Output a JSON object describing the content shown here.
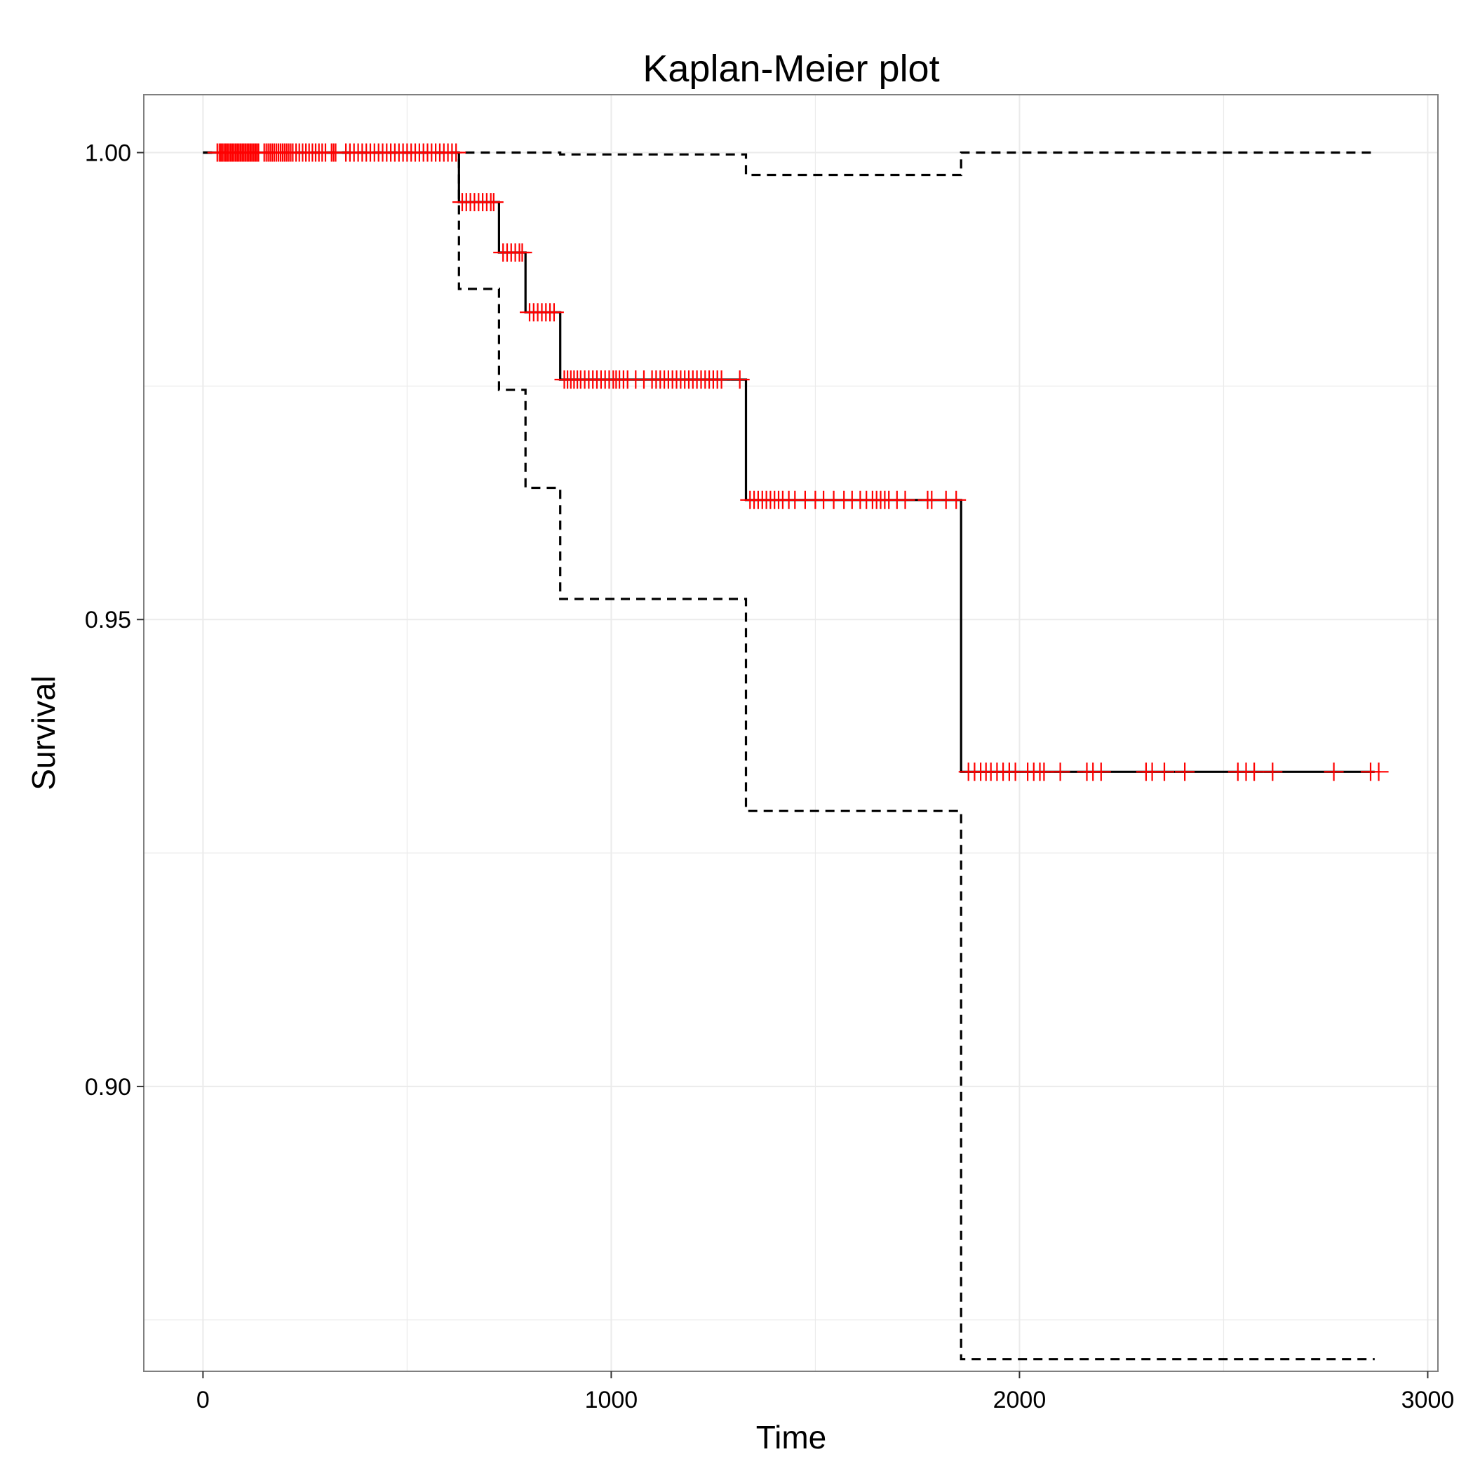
{
  "chart_data": {
    "type": "line",
    "title": "Kaplan-Meier plot",
    "xlabel": "Time",
    "ylabel": "Survival",
    "xlim": [
      -145,
      3025
    ],
    "ylim": [
      0.8695,
      1.0062
    ],
    "x_ticks": [
      0,
      1000,
      2000,
      3000
    ],
    "x_tick_labels": [
      "0",
      "1000",
      "2000",
      "3000"
    ],
    "y_ticks": [
      0.9,
      0.95,
      1.0
    ],
    "y_tick_labels": [
      "0.90",
      "0.95",
      "1.00"
    ],
    "grid": true,
    "colors": {
      "survival": "#000000",
      "ci": "#000000",
      "censor": "#ff0000",
      "panel_border": "#7f7f7f",
      "grid": "#ebebeb"
    },
    "series": [
      {
        "role": "estimate",
        "style": "solid",
        "points": [
          [
            0,
            1.0
          ],
          [
            627,
            1.0
          ],
          [
            627,
            0.9947
          ],
          [
            725,
            0.9947
          ],
          [
            725,
            0.9893
          ],
          [
            790,
            0.9893
          ],
          [
            790,
            0.9829
          ],
          [
            875,
            0.9829
          ],
          [
            875,
            0.9757
          ],
          [
            1330,
            0.9757
          ],
          [
            1330,
            0.9628
          ],
          [
            1857,
            0.9628
          ],
          [
            1857,
            0.9337
          ],
          [
            2870,
            0.9337
          ]
        ]
      },
      {
        "role": "upper-ci",
        "style": "dashed",
        "points": [
          [
            0,
            1.0
          ],
          [
            875,
            1.0
          ],
          [
            875,
            0.9998
          ],
          [
            1330,
            0.9998
          ],
          [
            1330,
            0.9976
          ],
          [
            1857,
            0.9976
          ],
          [
            1857,
            1.0
          ],
          [
            2870,
            1.0
          ]
        ]
      },
      {
        "role": "lower-ci",
        "style": "dashed",
        "points": [
          [
            0,
            1.0
          ],
          [
            627,
            1.0
          ],
          [
            627,
            0.9854
          ],
          [
            725,
            0.9854
          ],
          [
            725,
            0.9746
          ],
          [
            790,
            0.9746
          ],
          [
            790,
            0.9641
          ],
          [
            875,
            0.9641
          ],
          [
            875,
            0.9522
          ],
          [
            1330,
            0.9522
          ],
          [
            1330,
            0.9295
          ],
          [
            1857,
            0.9295
          ],
          [
            1857,
            0.8708
          ],
          [
            2870,
            0.8708
          ]
        ]
      }
    ],
    "censor_groups": [
      {
        "y": 1.0,
        "times": [
          35,
          40,
          44,
          48,
          52,
          56,
          60,
          64,
          68,
          72,
          76,
          80,
          84,
          88,
          92,
          96,
          100,
          104,
          108,
          112,
          116,
          120,
          124,
          128,
          132,
          136,
          150,
          155,
          160,
          165,
          170,
          175,
          180,
          185,
          190,
          195,
          200,
          205,
          210,
          215,
          220,
          228,
          236,
          244,
          252,
          260,
          268,
          276,
          284,
          292,
          300,
          315,
          320,
          325,
          350,
          360,
          370,
          380,
          390,
          400,
          410,
          420,
          430,
          440,
          450,
          460,
          470,
          480,
          490,
          500,
          510,
          520,
          530,
          540,
          550,
          560,
          570,
          580,
          590,
          600,
          610,
          620
        ]
      },
      {
        "y": 0.9947,
        "times": [
          635,
          645,
          655,
          665,
          675,
          685,
          695,
          705,
          712
        ]
      },
      {
        "y": 0.9893,
        "times": [
          735,
          745,
          755,
          765,
          775,
          782
        ]
      },
      {
        "y": 0.9829,
        "times": [
          800,
          810,
          820,
          830,
          840,
          850,
          860
        ]
      },
      {
        "y": 0.9757,
        "times": [
          885,
          893,
          901,
          909,
          917,
          925,
          935,
          945,
          955,
          965,
          975,
          985,
          995,
          1005,
          1012,
          1020,
          1030,
          1040,
          1060,
          1080,
          1100,
          1110,
          1120,
          1130,
          1140,
          1150,
          1160,
          1170,
          1180,
          1190,
          1200,
          1210,
          1220,
          1230,
          1240,
          1250,
          1260,
          1270,
          1315
        ]
      },
      {
        "y": 0.9628,
        "times": [
          1340,
          1350,
          1360,
          1370,
          1380,
          1390,
          1400,
          1410,
          1420,
          1435,
          1450,
          1475,
          1500,
          1520,
          1545,
          1570,
          1590,
          1610,
          1625,
          1640,
          1650,
          1660,
          1670,
          1680,
          1700,
          1720,
          1775,
          1785,
          1820,
          1845
        ]
      },
      {
        "y": 0.9337,
        "times": [
          1875,
          1890,
          1905,
          1918,
          1930,
          1945,
          1960,
          1975,
          1990,
          2020,
          2035,
          2050,
          2060,
          2100,
          2165,
          2180,
          2200,
          2310,
          2325,
          2355,
          2405,
          2535,
          2555,
          2575,
          2620,
          2770,
          2860,
          2880
        ]
      }
    ]
  }
}
